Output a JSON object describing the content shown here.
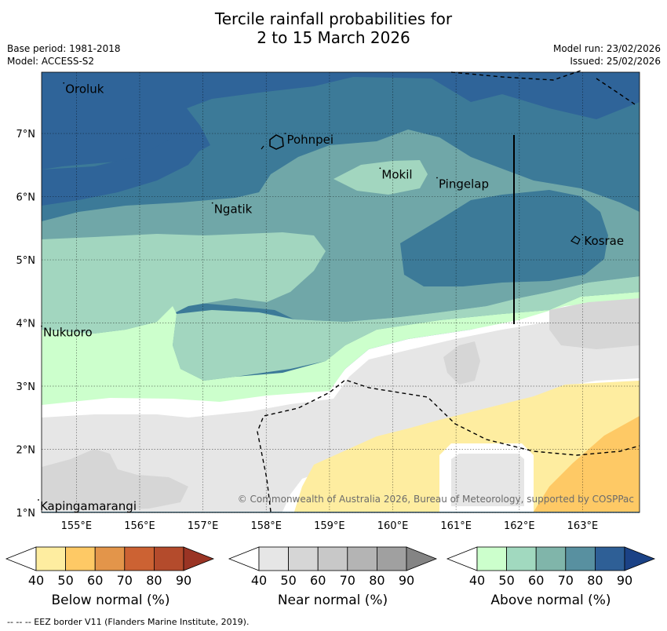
{
  "title": {
    "line1": "Tercile rainfall probabilities for",
    "line2": "2 to 15 March 2026"
  },
  "meta": {
    "base_period": "Base period: 1981-2018",
    "model": "Model: ACCESS-S2",
    "model_run": "Model run: 23/02/2026",
    "issued": "Issued: 25/02/2026"
  },
  "map": {
    "lat_labels": [
      "7°N",
      "6°N",
      "5°N",
      "4°N",
      "3°N",
      "2°N",
      "1°N"
    ],
    "lat_values": [
      7,
      6,
      5,
      4,
      3,
      2,
      1
    ],
    "lon_labels": [
      "155°E",
      "156°E",
      "157°E",
      "158°E",
      "159°E",
      "160°E",
      "161°E",
      "162°E",
      "163°E"
    ],
    "lon_values": [
      155,
      156,
      157,
      158,
      159,
      160,
      161,
      162,
      163
    ],
    "places": [
      {
        "name": "Oroluk",
        "lon": 154.8,
        "lat": 7.7
      },
      {
        "name": "Pohnpei",
        "lon": 158.3,
        "lat": 6.9
      },
      {
        "name": "Mokil",
        "lon": 159.8,
        "lat": 6.35
      },
      {
        "name": "Pingelap",
        "lon": 160.7,
        "lat": 6.2
      },
      {
        "name": "Ngatik",
        "lon": 157.15,
        "lat": 5.8
      },
      {
        "name": "Kosrae",
        "lon": 163.0,
        "lat": 5.3
      },
      {
        "name": "Nukuoro",
        "lon": 154.45,
        "lat": 3.85
      },
      {
        "name": "Kapingamarangi",
        "lon": 154.4,
        "lat": 1.1
      }
    ],
    "copyright": "© Commonwealth of Australia 2026, Bureau of Meteorology, supported by COSPPac"
  },
  "colorbars": {
    "below": {
      "label": "Below normal (%)",
      "ticks": [
        "40",
        "50",
        "60",
        "70",
        "80",
        "90"
      ],
      "colors": [
        "#ffffff",
        "#feeda0",
        "#fec965",
        "#e3954a",
        "#cc6233",
        "#b44b2c",
        "#9a3424"
      ]
    },
    "near": {
      "label": "Near normal (%)",
      "ticks": [
        "40",
        "50",
        "60",
        "70",
        "80",
        "90"
      ],
      "colors": [
        "#ffffff",
        "#e6e6e6",
        "#d6d6d6",
        "#c8c8c8",
        "#b4b4b4",
        "#a0a0a0",
        "#848484"
      ]
    },
    "above": {
      "label": "Above normal (%)",
      "ticks": [
        "40",
        "50",
        "60",
        "70",
        "80",
        "90"
      ],
      "colors": [
        "#ffffff",
        "#ccffcc",
        "#a1d9bf",
        "#80b5aa",
        "#5890a0",
        "#2e5f96",
        "#1b4286"
      ]
    }
  },
  "footnote": "--  --  -- EEZ border V11 (Flanders Marine Institute, 2019)."
}
